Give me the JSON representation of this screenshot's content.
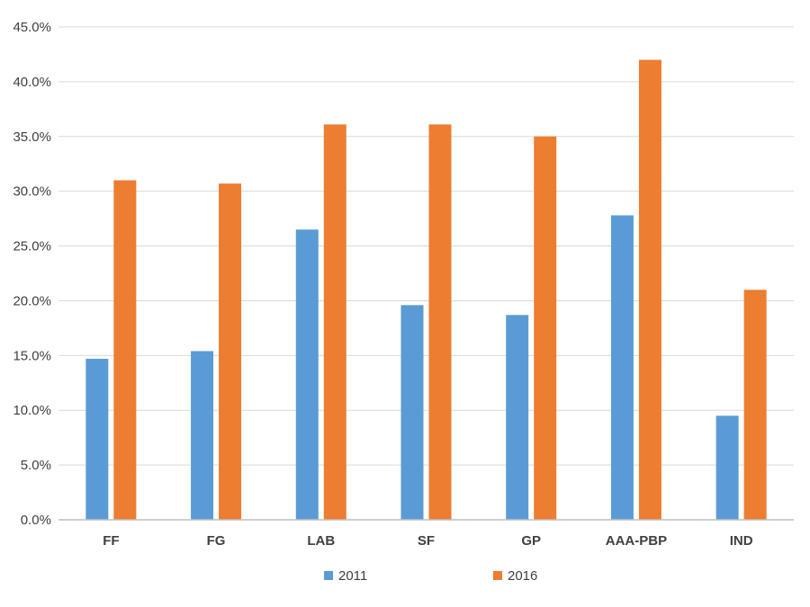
{
  "chart_data": {
    "type": "bar",
    "categories": [
      "FF",
      "FG",
      "LAB",
      "SF",
      "GP",
      "AAA-PBP",
      "IND"
    ],
    "series": [
      {
        "name": "2011",
        "color": "#5b9bd5",
        "values": [
          14.7,
          15.4,
          26.5,
          19.6,
          18.7,
          27.8,
          9.5
        ]
      },
      {
        "name": "2016",
        "color": "#ed7d31",
        "values": [
          31.0,
          30.7,
          36.1,
          36.1,
          35.0,
          42.0,
          21.0
        ]
      }
    ],
    "y_ticks": [
      "0.0%",
      "5.0%",
      "10.0%",
      "15.0%",
      "20.0%",
      "25.0%",
      "30.0%",
      "35.0%",
      "40.0%",
      "45.0%"
    ],
    "ylim": [
      0,
      45
    ],
    "grid": true,
    "legend_position": "bottom",
    "title": "",
    "xlabel": "",
    "ylabel": ""
  }
}
